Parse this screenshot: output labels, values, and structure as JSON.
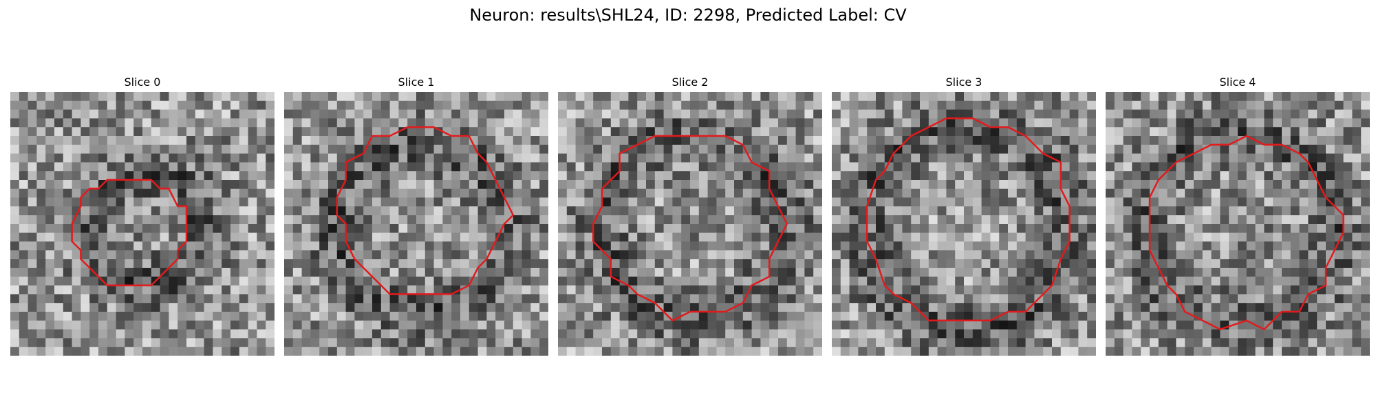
{
  "figure": {
    "title": "Neuron: results\\SHL24, ID: 2298, Predicted Label: CV",
    "neuron": "results\\SHL24",
    "id": 2298,
    "predicted_label": "CV",
    "colors": {
      "background": "#ffffff",
      "contour": "#e31a1c"
    }
  },
  "panels": [
    {
      "title": "Slice 0",
      "contour_scale": 0.42,
      "center_offset": [
        -0.05,
        0.03
      ]
    },
    {
      "title": "Slice 1",
      "contour_scale": 0.64,
      "center_offset": [
        0.02,
        -0.05
      ]
    },
    {
      "title": "Slice 2",
      "contour_scale": 0.69,
      "center_offset": [
        0.0,
        0.0
      ]
    },
    {
      "title": "Slice 3",
      "contour_scale": 0.77,
      "center_offset": [
        0.02,
        0.0
      ]
    },
    {
      "title": "Slice 4",
      "contour_scale": 0.72,
      "center_offset": [
        0.02,
        0.03
      ]
    }
  ]
}
